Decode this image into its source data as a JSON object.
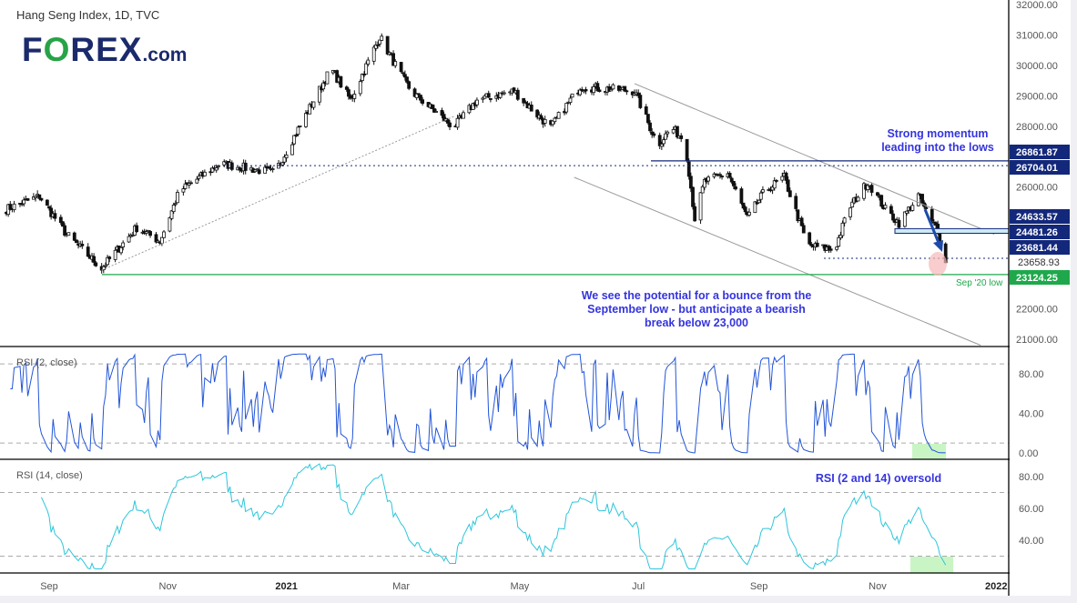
{
  "header": {
    "title": "Hang Seng Index, 1D, TVC",
    "logo_text": "FOREX.com"
  },
  "colors": {
    "navy": "#13287a",
    "green": "#1ea84b",
    "rsi2": "#2255d8",
    "rsi14": "#2cc6dc",
    "annotation": "#3434e0",
    "oversold_fill": "#c9f5c4",
    "circle": "#f6b8b8"
  },
  "annotations": {
    "momentum": "Strong momentum leading into the lows",
    "bounce": "We see the potential for a bounce from the September low - but anticipate a bearish break below 23,000",
    "rsi_oversold": "RSI (2 and 14) oversold",
    "sep_low": "Sep '20 low"
  },
  "chart_data": {
    "type": "candlestick",
    "title": "Hang Seng Index, 1D, TVC",
    "ylim": [
      21000,
      32000
    ],
    "y_ticks": [
      "32000.00",
      "31000.00",
      "30000.00",
      "29000.00",
      "28000.00",
      "26000.00",
      "22000.00",
      "21000.00"
    ],
    "x_ticks": [
      "Sep",
      "Nov",
      "2021",
      "Mar",
      "May",
      "Jul",
      "Sep",
      "Nov",
      "2022"
    ],
    "price_path": [
      [
        "2020-08-10",
        25274
      ],
      [
        "2020-08-27",
        25700
      ],
      [
        "2020-09-10",
        24440
      ],
      [
        "2020-09-28",
        23330
      ],
      [
        "2020-10-16",
        24670
      ],
      [
        "2020-10-28",
        24220
      ],
      [
        "2020-11-07",
        25870
      ],
      [
        "2020-11-28",
        26770
      ],
      [
        "2020-12-26",
        26470
      ],
      [
        "2021-01-05",
        27660
      ],
      [
        "2021-01-24",
        29900
      ],
      [
        "2021-02-03",
        28860
      ],
      [
        "2021-02-18",
        30950
      ],
      [
        "2021-02-27",
        29900
      ],
      [
        "2021-03-06",
        29160
      ],
      [
        "2021-03-28",
        27960
      ],
      [
        "2021-04-09",
        28860
      ],
      [
        "2021-04-28",
        29160
      ],
      [
        "2021-05-07",
        28560
      ],
      [
        "2021-05-17",
        27960
      ],
      [
        "2021-06-01",
        29300
      ],
      [
        "2021-06-29",
        29160
      ],
      [
        "2021-07-11",
        27370
      ],
      [
        "2021-07-18",
        27960
      ],
      [
        "2021-07-25",
        27520
      ],
      [
        "2021-07-30",
        24970
      ],
      [
        "2021-08-04",
        26170
      ],
      [
        "2021-08-16",
        26470
      ],
      [
        "2021-08-26",
        24970
      ],
      [
        "2021-09-04",
        25870
      ],
      [
        "2021-09-14",
        26320
      ],
      [
        "2021-09-26",
        24080
      ],
      [
        "2021-10-10",
        23930
      ],
      [
        "2021-10-17",
        25270
      ],
      [
        "2021-10-27",
        26170
      ],
      [
        "2021-11-05",
        25270
      ],
      [
        "2021-11-12",
        24820
      ],
      [
        "2021-11-22",
        25720
      ],
      [
        "2021-11-29",
        24820
      ],
      [
        "2021-12-02",
        24670
      ],
      [
        "2021-12-04",
        23930
      ],
      [
        "2021-12-06",
        23480
      ]
    ],
    "levels": [
      {
        "value": 26861.87,
        "label": "26861.87",
        "style": "solid",
        "color": "navy"
      },
      {
        "value": 26704.01,
        "label": "26704.01",
        "style": "dotted",
        "color": "navy"
      },
      {
        "value": 24633.57,
        "label": "24633.57",
        "style": "zone",
        "color": "navy"
      },
      {
        "value": 24481.26,
        "label": "24481.26",
        "style": "zone",
        "color": "navy"
      },
      {
        "value": 23681.44,
        "label": "23681.44",
        "style": "label",
        "color": "navy"
      },
      {
        "value": 23658.93,
        "label": "23658.93",
        "style": "dotted",
        "color": "plain"
      },
      {
        "value": 23124.25,
        "label": "23124.25",
        "style": "solid",
        "color": "green"
      }
    ],
    "trendlines": [
      {
        "from": [
          "2020-09-28",
          23270
        ],
        "to": [
          "2021-03-28",
          28320
        ],
        "style": "dotted"
      },
      {
        "from": [
          "2021-06-29",
          29400
        ],
        "to": [
          "2021-12-31",
          24450
        ],
        "style": "solid"
      },
      {
        "from": [
          "2021-05-29",
          26320
        ],
        "to": [
          "2021-12-24",
          20800
        ],
        "style": "solid"
      }
    ],
    "rsi2": {
      "label": "RSI (2, close)",
      "levels": [
        10,
        90
      ],
      "ticks": [
        "80.00",
        "40.00",
        "0.00"
      ],
      "ylim": [
        0,
        100
      ]
    },
    "rsi14": {
      "label": "RSI (14, close)",
      "levels": [
        30,
        70
      ],
      "ticks": [
        "80.00",
        "60.00",
        "40.00"
      ],
      "ylim": [
        20,
        90
      ]
    }
  }
}
